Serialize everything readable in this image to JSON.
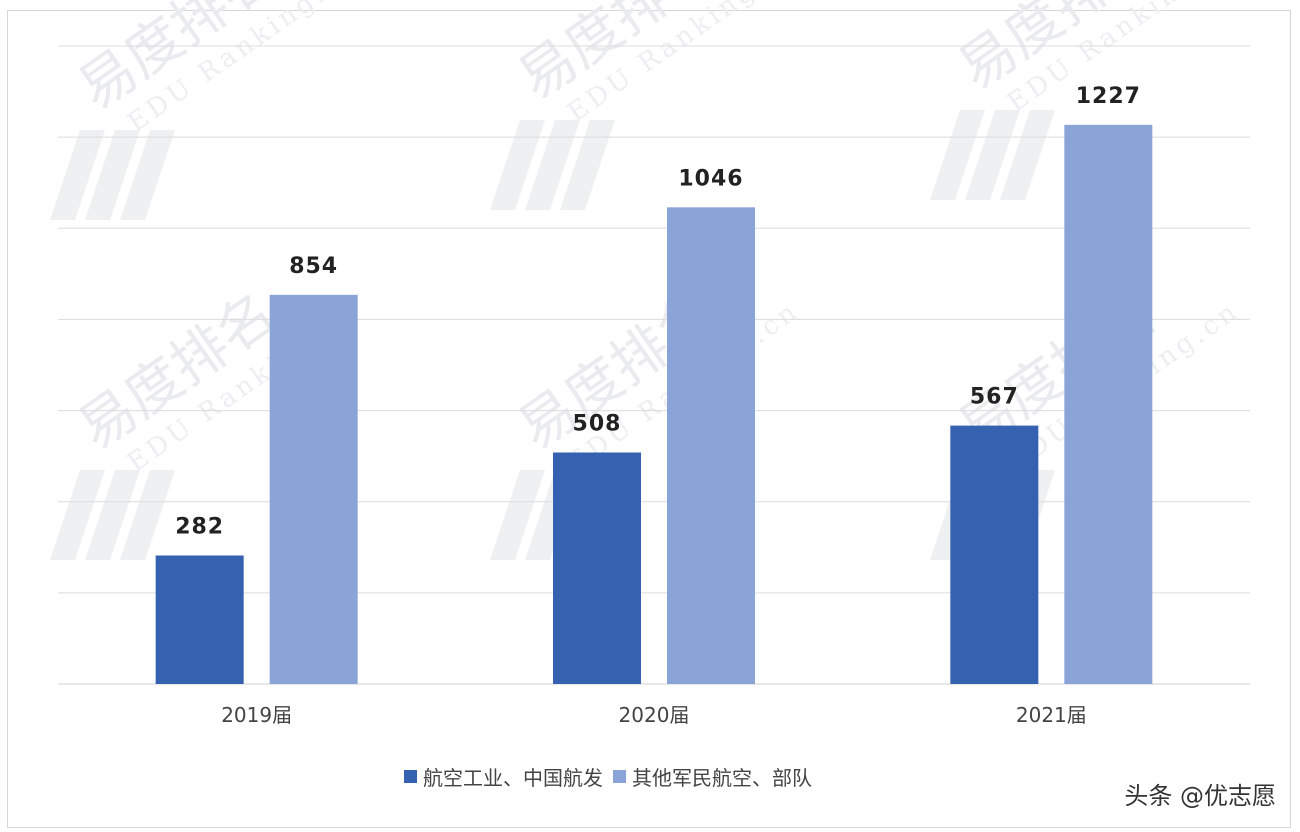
{
  "chart_data": {
    "type": "bar",
    "categories": [
      "2019届",
      "2020届",
      "2021届"
    ],
    "series": [
      {
        "name": "航空工业、中国航发",
        "values": [
          282,
          508,
          567
        ],
        "color": "#3562b0"
      },
      {
        "name": "其他军民航空、部队",
        "values": [
          854,
          1046,
          1227
        ],
        "color": "#8aa4d8"
      }
    ],
    "ylim": [
      0,
      1400
    ],
    "grid": true,
    "legend_position": "bottom",
    "title": "",
    "xlabel": "",
    "ylabel": ""
  },
  "watermark": {
    "main": "易度排名",
    "sub": "EDU Ranking.cn"
  },
  "credit": "头条 @优志愿"
}
